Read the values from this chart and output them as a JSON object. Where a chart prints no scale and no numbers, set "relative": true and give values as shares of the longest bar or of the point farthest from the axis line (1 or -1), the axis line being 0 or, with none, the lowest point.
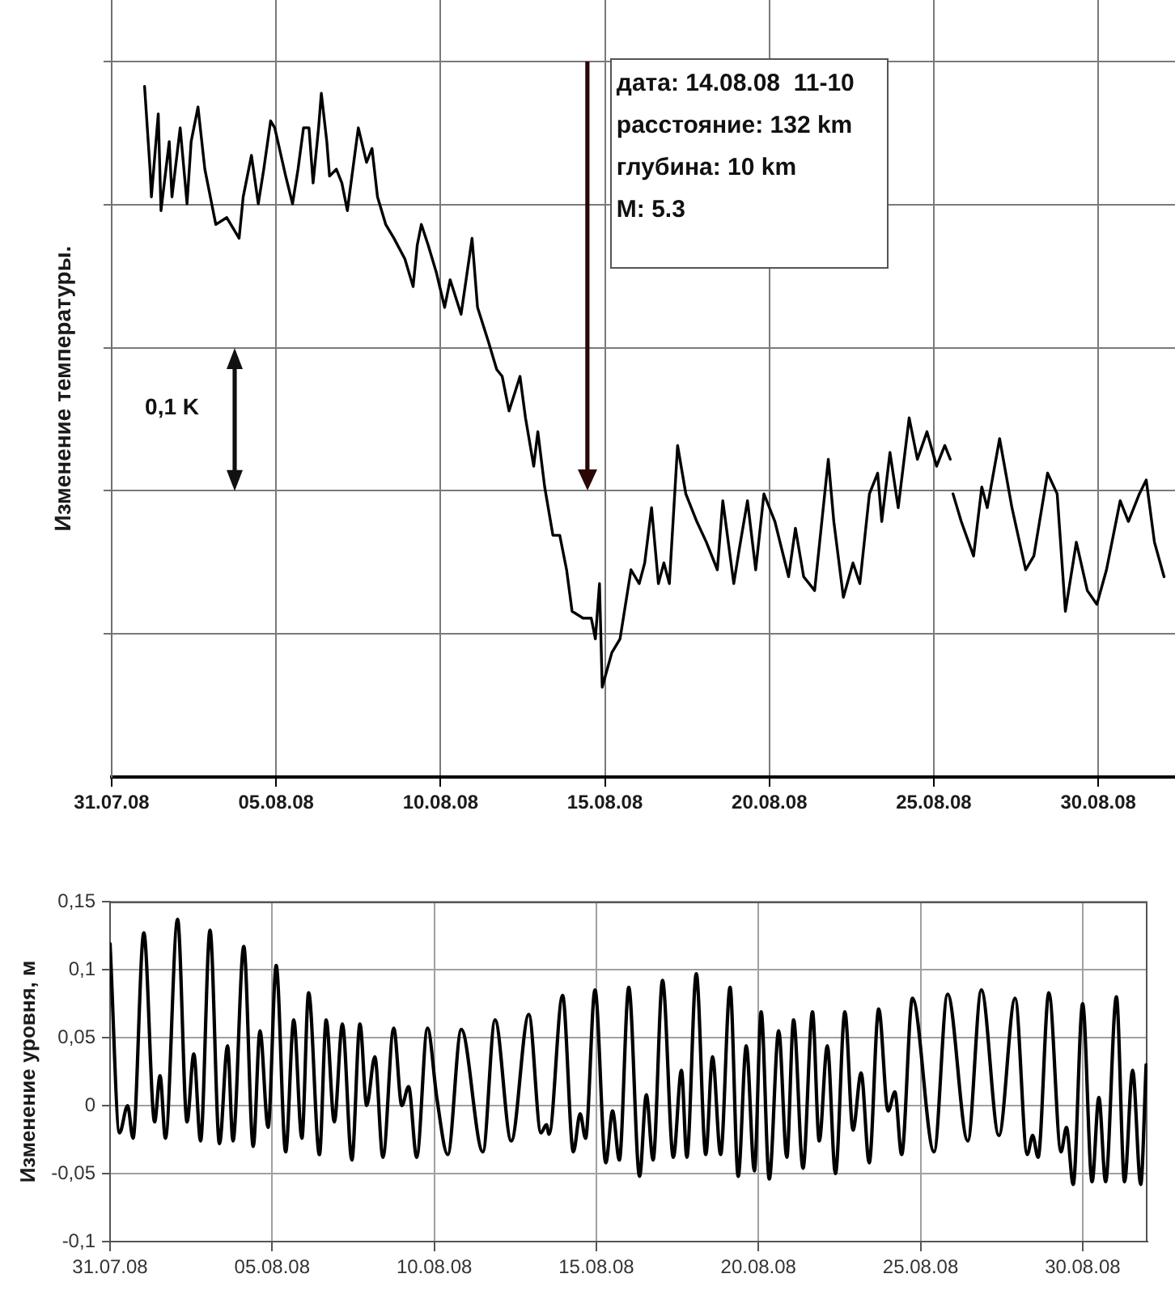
{
  "chart_data": [
    {
      "type": "line",
      "ylabel": "Изменение температуры.",
      "relative": true,
      "color": "#000000",
      "marker": "none",
      "grid": true,
      "xlim": [
        "--07-31",
        "--09-01T08:00"
      ],
      "xticks": [
        {
          "value": "--07-31",
          "label": "31.07.08"
        },
        {
          "value": "--08-05",
          "label": "05.08.08"
        },
        {
          "value": "--08-10",
          "label": "10.08.08"
        },
        {
          "value": "--08-15",
          "label": "15.08.08"
        },
        {
          "value": "--08-20",
          "label": "20.08.08"
        },
        {
          "value": "--08-25",
          "label": "25.08.08"
        },
        {
          "value": "--08-30",
          "label": "30.08.08"
        }
      ],
      "ref_lines": [
        {
          "axis": "x",
          "value": "--08-14T11:10",
          "color": "#2a0606"
        }
      ],
      "annotations": [
        "дата: 14.08.08  11-10",
        "расстояние: 132 km",
        "глубина: 10 km",
        "M: 5.3",
        "0,1 K"
      ],
      "x": [
        "--08-01T00:00",
        "--08-01T04:00",
        "--08-01T05:00",
        "--08-01T10:00",
        "--08-01T12:00",
        "--08-01T18:00",
        "--08-01T20:00",
        "--08-02T02:00",
        "--08-02T07:00",
        "--08-02T10:00",
        "--08-02T15:00",
        "--08-02T20:00",
        "--08-03T00:00",
        "--08-03T04:00",
        "--08-03T12:00",
        "--08-03T21:00",
        "--08-04T00:00",
        "--08-04T04:00",
        "--08-04T06:00",
        "--08-04T11:00",
        "--08-04T15:00",
        "--08-04T20:00",
        "--08-04T23:00",
        "--08-05T07:00",
        "--08-05T12:00",
        "--08-05T16:00",
        "--08-05T20:00",
        "--08-06T00:00",
        "--08-06T03:00",
        "--08-06T07:00",
        "--08-06T09:00",
        "--08-06T13:00",
        "--08-06T15:00",
        "--08-06T20:00",
        "--08-07T00:00",
        "--08-07T04:00",
        "--08-07T08:00",
        "--08-07T12:00",
        "--08-07T18:00",
        "--08-07T22:00",
        "--08-08T02:00",
        "--08-08T08:00",
        "--08-08T14:00",
        "--08-08T22:00",
        "--08-09T04:00",
        "--08-09T07:00",
        "--08-09T10:00",
        "--08-09T15:00",
        "--08-09T21:00",
        "--08-10T03:00",
        "--08-10T07:00",
        "--08-10T15:00",
        "--08-10T23:00",
        "--08-11T03:00",
        "--08-11T11:00",
        "--08-11T17:00",
        "--08-11T21:00",
        "--08-12T02:00",
        "--08-12T10:00",
        "--08-12T14:00",
        "--08-12T20:00",
        "--08-12T23:00",
        "--08-13T04:00",
        "--08-13T10:00",
        "--08-13T15:00",
        "--08-13T20:00",
        "--08-14T00:00",
        "--08-14T08:00",
        "--08-14T14:00",
        "--08-14T17:00",
        "--08-14T20:00",
        "--08-14T22:00",
        "--08-15T05:00",
        "--08-15T11:00",
        "--08-15T19:00",
        "--08-16T01:00",
        "--08-16T05:00",
        "--08-16T10:00",
        "--08-16T15:00",
        "--08-16T19:00",
        "--08-16T23:00",
        "--08-17T05:00",
        "--08-17T11:00",
        "--08-17T19:00",
        "--08-18T02:00",
        "--08-18T10:00",
        "--08-18T14:00",
        "--08-18T22:00",
        "--08-19T02:00",
        "--08-19T08:00",
        "--08-19T14:00",
        "--08-19T20:00",
        "--08-20T04:00",
        "--08-20T14:00",
        "--08-20T19:00",
        "--08-21T01:00",
        "--08-21T09:00",
        "--08-21T19:00",
        "--08-21T23:00",
        "--08-22T06:00",
        "--08-22T13:00",
        "--08-22T18:00",
        "--08-23T01:00",
        "--08-23T07:00",
        "--08-23T10:00",
        "--08-23T16:00",
        "--08-23T22:00",
        "--08-24T06:00",
        "--08-24T12:00",
        "--08-24T19:00",
        "--08-25T02:00",
        "--08-25T08:00",
        "--08-25T12:00",
        "--08-25T13:00",
        "--08-25T14:00",
        "--08-25T20:00",
        "--08-26T05:00",
        "--08-26T11:00",
        "--08-26T15:00",
        "--08-27T00:00",
        "--08-27T09:00",
        "--08-27T19:00",
        "--08-28T01:00",
        "--08-28T11:00",
        "--08-28T18:00",
        "--08-29T00:00",
        "--08-29T08:00",
        "--08-29T16:00",
        "--08-29T23:00",
        "--08-30T06:00",
        "--08-30T16:00",
        "--08-30T22:00",
        "--08-31T06:00",
        "--08-31T11:00",
        "--08-31T17:00",
        "--09-01T00:00"
      ],
      "values": [
        1.0,
        0.88,
        0.84,
        0.96,
        0.82,
        0.92,
        0.84,
        0.94,
        0.83,
        0.92,
        0.97,
        0.88,
        0.84,
        0.8,
        0.81,
        0.78,
        0.84,
        0.88,
        0.9,
        0.83,
        0.88,
        0.95,
        0.94,
        0.87,
        0.83,
        0.88,
        0.94,
        0.94,
        0.86,
        0.94,
        0.99,
        0.92,
        0.87,
        0.88,
        0.86,
        0.82,
        0.88,
        0.94,
        0.89,
        0.91,
        0.84,
        0.8,
        0.78,
        0.75,
        0.71,
        0.77,
        0.8,
        0.77,
        0.73,
        0.68,
        0.72,
        0.67,
        0.78,
        0.68,
        0.63,
        0.59,
        0.58,
        0.53,
        0.58,
        0.52,
        0.45,
        0.5,
        0.42,
        0.35,
        0.35,
        0.3,
        0.24,
        0.23,
        0.23,
        0.2,
        0.28,
        0.13,
        0.18,
        0.2,
        0.3,
        0.28,
        0.31,
        0.39,
        0.28,
        0.31,
        0.28,
        0.48,
        0.41,
        0.37,
        0.34,
        0.3,
        0.4,
        0.28,
        0.33,
        0.4,
        0.3,
        0.41,
        0.37,
        0.29,
        0.36,
        0.29,
        0.27,
        0.46,
        0.37,
        0.26,
        0.31,
        0.28,
        0.41,
        0.44,
        0.37,
        0.47,
        0.39,
        0.52,
        0.46,
        0.5,
        0.45,
        0.48,
        0.46,
        null,
        0.41,
        0.37,
        0.32,
        0.42,
        0.39,
        0.49,
        0.39,
        0.3,
        0.32,
        0.44,
        0.41,
        0.24,
        0.34,
        0.27,
        0.25,
        0.3,
        0.4,
        0.37,
        0.41,
        0.43,
        0.34,
        0.29
      ]
    },
    {
      "type": "line",
      "ylabel": "Изменение уровня, м",
      "color": "#000000",
      "marker": "none",
      "grid": true,
      "xlim": [
        "--07-31",
        "--09-01"
      ],
      "xticks": [
        {
          "value": "--07-31",
          "label": "31.07.08"
        },
        {
          "value": "--08-05",
          "label": "05.08.08"
        },
        {
          "value": "--08-10",
          "label": "10.08.08"
        },
        {
          "value": "--08-15",
          "label": "15.08.08"
        },
        {
          "value": "--08-20",
          "label": "20.08.08"
        },
        {
          "value": "--08-25",
          "label": "25.08.08"
        },
        {
          "value": "--08-30",
          "label": "30.08.08"
        }
      ],
      "ylim": [
        -0.1,
        0.15
      ],
      "yticks": [
        {
          "value": -0.1,
          "label": "-0,1"
        },
        {
          "value": -0.05,
          "label": "-0,05"
        },
        0,
        {
          "value": 0.05,
          "label": "0,05"
        },
        {
          "value": 0.1,
          "label": "0,1"
        },
        {
          "value": 0.15,
          "label": "0,15"
        }
      ],
      "x": [
        "--07-31T00:00",
        "--07-31T07:00",
        "--07-31T13:00",
        "--07-31T17:00",
        "--08-01T01:00",
        "--08-01T09:00",
        "--08-01T13:00",
        "--08-01T17:00",
        "--08-02T02:00",
        "--08-02T09:00",
        "--08-02T14:00",
        "--08-02T19:00",
        "--08-03T02:00",
        "--08-03T09:00",
        "--08-03T15:00",
        "--08-03T19:00",
        "--08-04T03:00",
        "--08-04T10:00",
        "--08-04T15:00",
        "--08-04T21:00",
        "--08-05T03:00",
        "--08-05T10:00",
        "--08-05T16:00",
        "--08-05T22:00",
        "--08-06T03:00",
        "--08-06T11:00",
        "--08-06T16:00",
        "--08-06T22:00",
        "--08-07T04:00",
        "--08-07T11:00",
        "--08-07T17:00",
        "--08-07T22:00",
        "--08-08T04:00",
        "--08-08T10:00",
        "--08-08T18:00",
        "--08-09T00:00",
        "--08-09T05:00",
        "--08-09T11:00",
        "--08-09T19:00",
        "--08-10T02:00",
        "--08-10T10:00",
        "--08-10T20:00",
        "--08-11T12:00",
        "--08-11T21:00",
        "--08-12T09:00",
        "--08-12T22:00",
        "--08-13T07:00",
        "--08-13T11:00",
        "--08-13T13:00",
        "--08-13T23:00",
        "--08-14T07:00",
        "--08-14T12:00",
        "--08-14T16:00",
        "--08-14T23:00",
        "--08-15T07:00",
        "--08-15T12:00",
        "--08-15T17:00",
        "--08-16T00:00",
        "--08-16T08:00",
        "--08-16T13:00",
        "--08-16T18:00",
        "--08-17T01:00",
        "--08-17T09:00",
        "--08-17T15:00",
        "--08-17T19:00",
        "--08-18T02:00",
        "--08-18T09:00",
        "--08-18T14:00",
        "--08-18T20:00",
        "--08-19T03:00",
        "--08-19T09:00",
        "--08-19T15:00",
        "--08-19T21:00",
        "--08-20T02:00",
        "--08-20T08:00",
        "--08-20T15:00",
        "--08-20T21:00",
        "--08-21T02:00",
        "--08-21T09:00",
        "--08-21T16:00",
        "--08-21T21:00",
        "--08-22T03:00",
        "--08-22T09:00",
        "--08-22T16:00",
        "--08-22T22:00",
        "--08-23T04:00",
        "--08-23T10:00",
        "--08-23T17:00",
        "--08-24T00:00",
        "--08-24T05:00",
        "--08-24T10:00",
        "--08-24T18:00",
        "--08-25T10:00",
        "--08-25T20:00",
        "--08-26T11:00",
        "--08-26T21:00",
        "--08-27T10:00",
        "--08-27T22:00",
        "--08-28T07:00",
        "--08-28T11:00",
        "--08-28T15:00",
        "--08-28T23:00",
        "--08-29T08:00",
        "--08-29T12:00",
        "--08-29T17:00",
        "--08-30T00:00",
        "--08-30T07:00",
        "--08-30T12:00",
        "--08-30T17:00",
        "--08-31T01:00",
        "--08-31T07:00",
        "--08-31T13:00",
        "--08-31T19:00",
        "--08-31T23:00"
      ],
      "values": [
        0.119,
        -0.02,
        0.0,
        -0.024,
        0.127,
        -0.012,
        0.022,
        -0.024,
        0.137,
        -0.012,
        0.038,
        -0.026,
        0.129,
        -0.028,
        0.044,
        -0.026,
        0.117,
        -0.03,
        0.055,
        -0.016,
        0.103,
        -0.034,
        0.063,
        -0.024,
        0.083,
        -0.036,
        0.063,
        -0.012,
        0.06,
        -0.04,
        0.06,
        0.0,
        0.036,
        -0.038,
        0.057,
        0.0,
        0.014,
        -0.038,
        0.057,
        0.005,
        -0.036,
        0.056,
        -0.034,
        0.063,
        -0.026,
        0.067,
        -0.02,
        -0.014,
        -0.021,
        0.081,
        -0.034,
        -0.006,
        -0.024,
        0.085,
        -0.042,
        -0.004,
        -0.04,
        0.087,
        -0.052,
        0.008,
        -0.04,
        0.092,
        -0.038,
        0.026,
        -0.038,
        0.097,
        -0.036,
        0.036,
        -0.036,
        0.087,
        -0.052,
        0.044,
        -0.048,
        0.069,
        -0.054,
        0.055,
        -0.038,
        0.063,
        -0.046,
        0.069,
        -0.026,
        0.044,
        -0.05,
        0.069,
        -0.018,
        0.024,
        -0.042,
        0.071,
        -0.004,
        0.01,
        -0.036,
        0.079,
        -0.034,
        0.082,
        -0.026,
        0.085,
        -0.022,
        0.079,
        -0.036,
        -0.022,
        -0.038,
        0.083,
        -0.034,
        -0.016,
        -0.058,
        0.075,
        -0.056,
        0.006,
        -0.056,
        0.08,
        -0.056,
        0.026,
        -0.058,
        0.03
      ]
    }
  ]
}
